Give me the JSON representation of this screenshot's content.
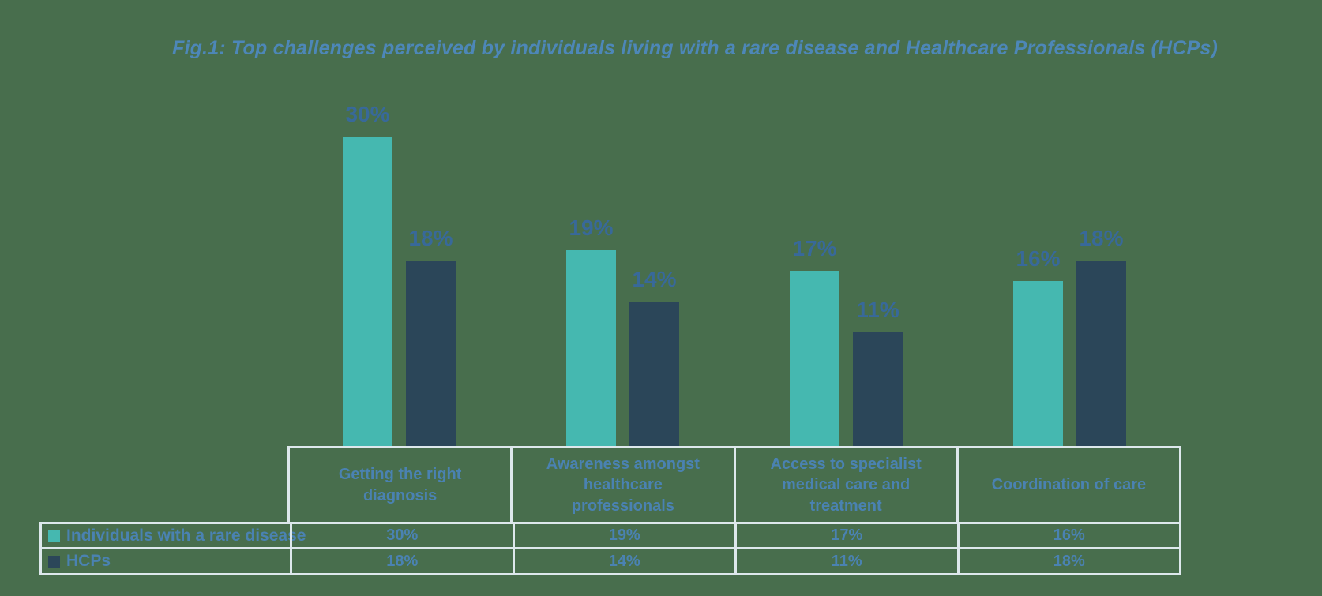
{
  "title": "Fig.1: Top challenges perceived by individuals living with a rare disease and Healthcare Professionals (HCPs)",
  "colors": {
    "background": "#486e4d",
    "series1": "#45b8b0",
    "series2": "#2b4659",
    "title_text": "#4d87b8",
    "bar_label_text": "#38699a",
    "table_text": "#4a82b2",
    "table_border": "#dde8ec"
  },
  "chart_data": {
    "type": "bar",
    "title": "Fig.1: Top challenges perceived by individuals living with a rare disease and Healthcare Professionals (HCPs)",
    "categories": [
      "Getting the right diagnosis",
      "Awareness amongst healthcare professionals",
      "Access to specialist medical care and treatment",
      "Coordination of care"
    ],
    "series": [
      {
        "name": "Individuals with a rare disease",
        "color": "#45b8b0",
        "values": [
          30,
          19,
          17,
          16
        ],
        "labels": [
          "30%",
          "19%",
          "17%",
          "16%"
        ]
      },
      {
        "name": "HCPs",
        "color": "#2b4659",
        "values": [
          18,
          14,
          11,
          18
        ],
        "labels": [
          "18%",
          "14%",
          "11%",
          "18%"
        ]
      }
    ],
    "value_suffix": "%",
    "ylim": [
      0,
      30
    ],
    "gridlines": false,
    "axes_visible": false,
    "data_labels": true,
    "legend_position": "data-table-left",
    "data_table": true
  }
}
